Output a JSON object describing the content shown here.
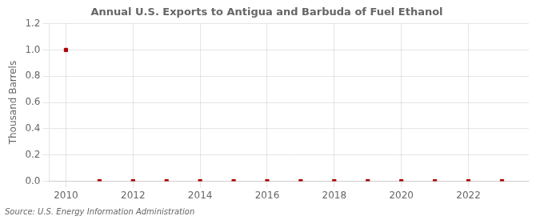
{
  "chart_data": {
    "type": "scatter",
    "title": "Annual U.S. Exports to Antigua and Barbuda of Fuel Ethanol",
    "ylabel": "Thousand Barrels",
    "annotation": "Source: U.S. Energy Information Administration",
    "x": [
      2010,
      2011,
      2012,
      2013,
      2014,
      2015,
      2016,
      2017,
      2018,
      2019,
      2020,
      2021,
      2022,
      2023
    ],
    "values": [
      1.0,
      0.0,
      0.0,
      0.0,
      0.0,
      0.0,
      0.0,
      0.0,
      0.0,
      0.0,
      0.0,
      0.0,
      0.0,
      0.0
    ],
    "color": "#aa0000",
    "marker": "square",
    "xlim": [
      2009.5,
      2023.8
    ],
    "xticks": [
      2010,
      2012,
      2014,
      2016,
      2018,
      2020,
      2022
    ],
    "ylim": [
      0.0,
      1.2
    ],
    "yticks": [
      {
        "value": 0.0,
        "label": "0.0"
      },
      0.2,
      0.4,
      0.6,
      0.8,
      {
        "value": 1.0,
        "label": "1.0"
      },
      1.2
    ],
    "grid": true
  }
}
